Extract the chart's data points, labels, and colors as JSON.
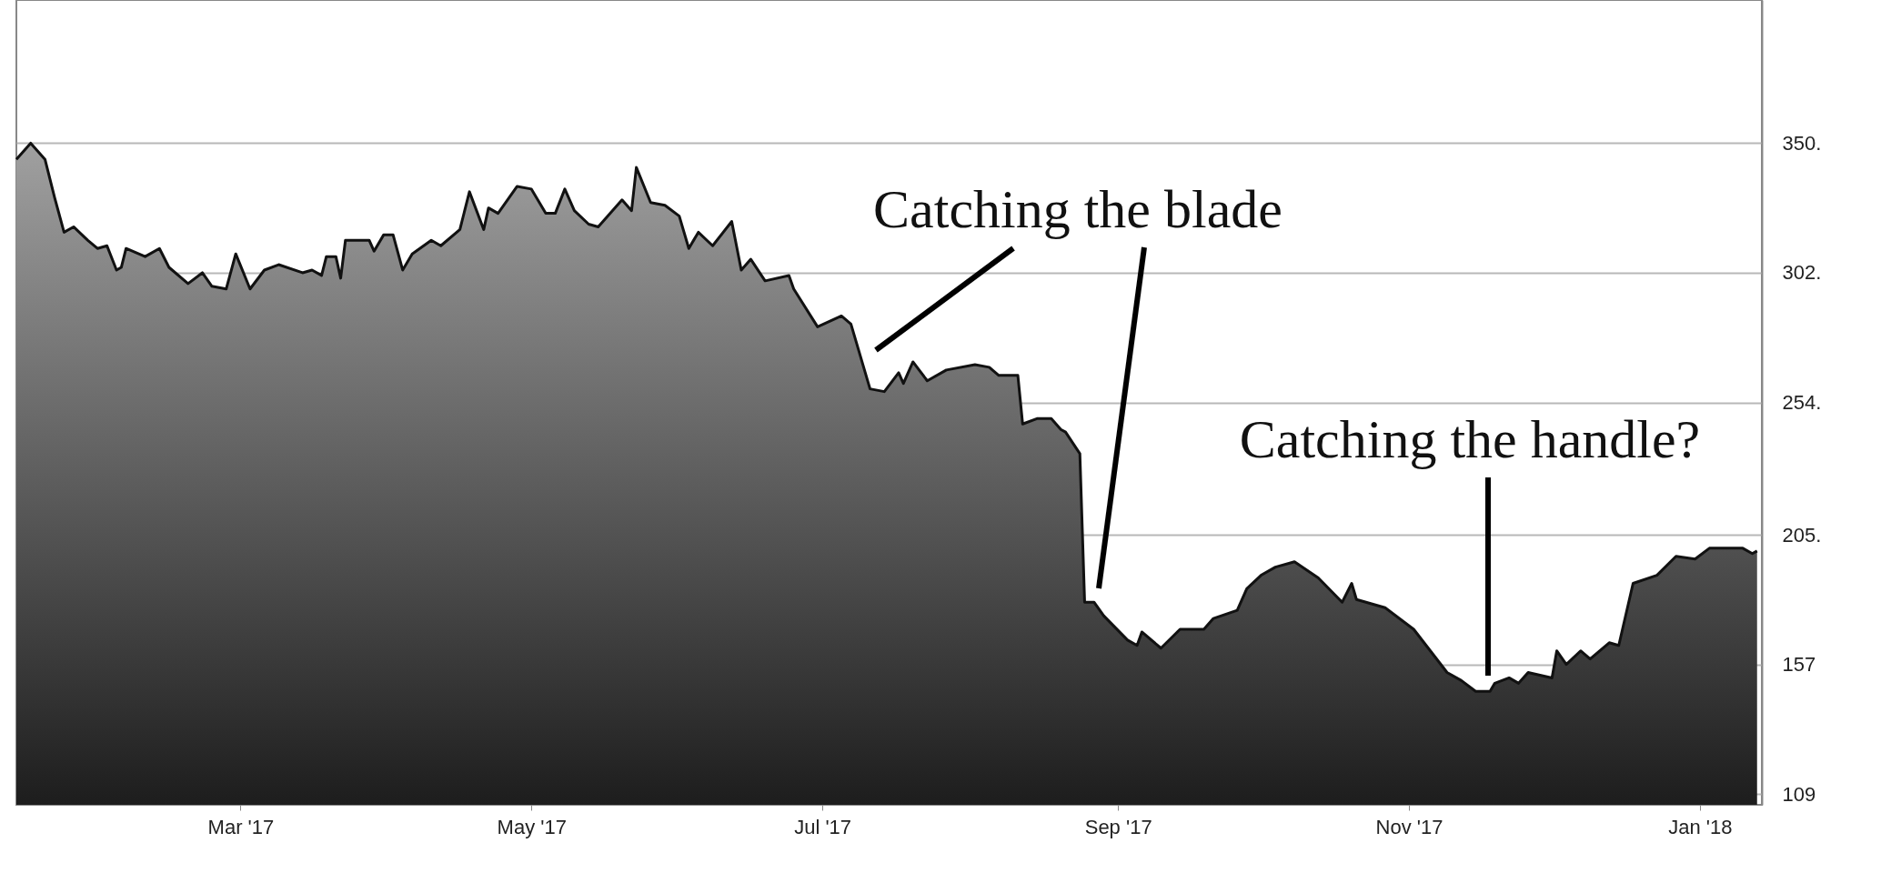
{
  "chart_data": {
    "type": "area",
    "x": [
      "2017-01-13",
      "2017-01-16",
      "2017-01-19",
      "2017-01-21",
      "2017-01-23",
      "2017-01-25",
      "2017-01-28",
      "2017-01-30",
      "2017-02-01",
      "2017-02-03",
      "2017-02-04",
      "2017-02-05",
      "2017-02-09",
      "2017-02-12",
      "2017-02-14",
      "2017-02-18",
      "2017-02-21",
      "2017-02-23",
      "2017-02-26",
      "2017-02-28",
      "2017-03-03",
      "2017-03-06",
      "2017-03-09",
      "2017-03-14",
      "2017-03-16",
      "2017-03-18",
      "2017-03-19",
      "2017-03-21",
      "2017-03-22",
      "2017-03-23",
      "2017-03-28",
      "2017-03-29",
      "2017-03-31",
      "2017-04-02",
      "2017-04-04",
      "2017-04-06",
      "2017-04-10",
      "2017-04-12",
      "2017-04-16",
      "2017-04-18",
      "2017-04-21",
      "2017-04-22",
      "2017-04-24",
      "2017-04-28",
      "2017-05-01",
      "2017-05-04",
      "2017-05-06",
      "2017-05-08",
      "2017-05-10",
      "2017-05-13",
      "2017-05-15",
      "2017-05-20",
      "2017-05-22",
      "2017-05-23",
      "2017-05-26",
      "2017-05-29",
      "2017-06-01",
      "2017-06-03",
      "2017-06-05",
      "2017-06-08",
      "2017-06-12",
      "2017-06-14",
      "2017-06-16",
      "2017-06-19",
      "2017-06-24",
      "2017-06-25",
      "2017-06-30",
      "2017-07-05",
      "2017-07-07",
      "2017-07-11",
      "2017-07-14",
      "2017-07-17",
      "2017-07-18",
      "2017-07-20",
      "2017-07-23",
      "2017-07-27",
      "2017-08-02",
      "2017-08-05",
      "2017-08-07",
      "2017-08-11",
      "2017-08-12",
      "2017-08-15",
      "2017-08-18",
      "2017-08-20",
      "2017-08-21",
      "2017-08-24",
      "2017-08-25",
      "2017-08-27",
      "2017-08-29",
      "2017-09-03",
      "2017-09-05",
      "2017-09-06",
      "2017-09-10",
      "2017-09-14",
      "2017-09-19",
      "2017-09-21",
      "2017-09-26",
      "2017-09-28",
      "2017-10-01",
      "2017-10-04",
      "2017-10-08",
      "2017-10-13",
      "2017-10-18",
      "2017-10-20",
      "2017-10-21",
      "2017-10-27",
      "2017-11-02",
      "2017-11-09",
      "2017-11-12",
      "2017-11-15",
      "2017-11-18",
      "2017-11-19",
      "2017-11-22",
      "2017-11-24",
      "2017-11-26",
      "2017-12-01",
      "2017-12-02",
      "2017-12-04",
      "2017-12-07",
      "2017-12-09",
      "2017-12-13",
      "2017-12-15",
      "2017-12-18",
      "2017-12-23",
      "2017-12-27",
      "2017-12-31",
      "2018-01-03",
      "2018-01-10",
      "2018-01-12",
      "2018-01-13"
    ],
    "series": [
      {
        "color": "#111111",
        "values": [
          344,
          350,
          344,
          330,
          317,
          319,
          314,
          311,
          312,
          303,
          304,
          311,
          308,
          311,
          304,
          298,
          302,
          297,
          296,
          309,
          296,
          303,
          305,
          302,
          303,
          301,
          308,
          308,
          300,
          314,
          314,
          310,
          316,
          316,
          303,
          309,
          314,
          312,
          318,
          332,
          318,
          326,
          324,
          334,
          333,
          324,
          324,
          333,
          325,
          320,
          319,
          329,
          325,
          341,
          328,
          327,
          323,
          311,
          317,
          312,
          321,
          303,
          307,
          299,
          301,
          296,
          282,
          286,
          283,
          259,
          258,
          265,
          261,
          269,
          262,
          266,
          268,
          267,
          264,
          264,
          246,
          248,
          248,
          244,
          243,
          235,
          180,
          180,
          175,
          166,
          164,
          169,
          163,
          170,
          170,
          174,
          177,
          185,
          190,
          193,
          195,
          189,
          180,
          187,
          181,
          178,
          170,
          154,
          151,
          147,
          147,
          150,
          152,
          150,
          154,
          152,
          162,
          157,
          162,
          159,
          165,
          164,
          187,
          190,
          197,
          196,
          200,
          200,
          198,
          199
        ]
      }
    ],
    "xlim": [
      "2017-01-13",
      "2018-01-14"
    ],
    "xticks": [
      {
        "value": "2017-03-01",
        "label": "Mar '17"
      },
      {
        "value": "2017-05-01",
        "label": "May '17"
      },
      {
        "value": "2017-07-01",
        "label": "Jul '17"
      },
      {
        "value": "2017-09-01",
        "label": "Sep '17"
      },
      {
        "value": "2017-11-01",
        "label": "Nov '17"
      },
      {
        "value": "2018-01-01",
        "label": "Jan '18"
      }
    ],
    "ylim": [
      105,
      403
    ],
    "yticks": [
      109,
      157,
      {
        "value": 205,
        "label": "205."
      },
      {
        "value": 254,
        "label": "254."
      },
      {
        "value": 302,
        "label": "302."
      },
      {
        "value": 350,
        "label": "350."
      }
    ],
    "grid": "y",
    "annotations": [
      "Catching the blade",
      "Catching the handle?"
    ]
  }
}
